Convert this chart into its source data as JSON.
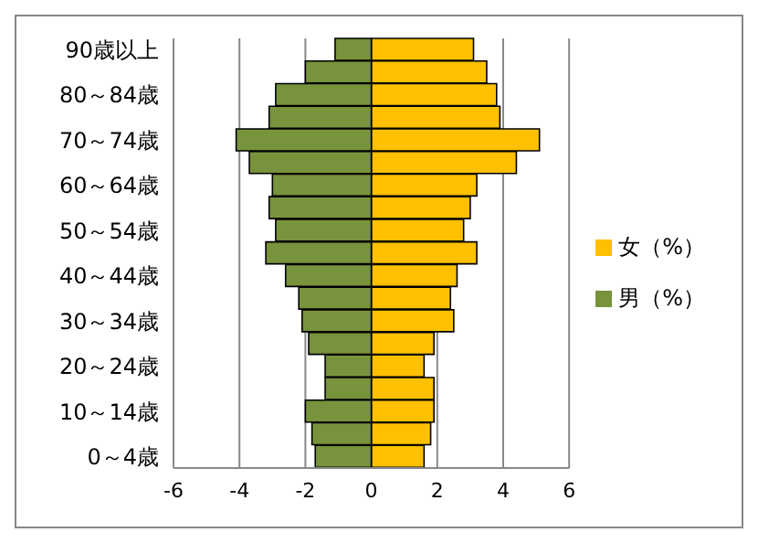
{
  "chart_data": {
    "type": "bar",
    "orientation": "horizontal",
    "stacked": true,
    "categories": [
      "90歳以上",
      null,
      "80～84歳",
      null,
      "70～74歳",
      null,
      "60～64歳",
      null,
      "50～54歳",
      null,
      "40～44歳",
      null,
      "30～34歳",
      null,
      "20～24歳",
      null,
      "10～14歳",
      null,
      "0～4歳"
    ],
    "series": [
      {
        "name": "女（%）",
        "color": "#ffc000",
        "values": [
          3.1,
          3.5,
          3.8,
          3.9,
          5.1,
          4.4,
          3.2,
          3.0,
          2.8,
          3.2,
          2.6,
          2.4,
          2.5,
          1.9,
          1.6,
          1.9,
          1.9,
          1.8,
          1.6
        ]
      },
      {
        "name": "男（%）",
        "color": "#77933c",
        "values": [
          -1.1,
          -2.0,
          -2.9,
          -3.1,
          -4.1,
          -3.7,
          -3.0,
          -3.1,
          -2.9,
          -3.2,
          -2.6,
          -2.2,
          -2.1,
          -1.9,
          -1.4,
          -1.4,
          -2.0,
          -1.8,
          -1.7
        ]
      }
    ],
    "xlim": [
      -6,
      6
    ],
    "xticks": [
      -6,
      -4,
      -2,
      0,
      2,
      4,
      6
    ],
    "grid": "x",
    "legend": "right"
  }
}
